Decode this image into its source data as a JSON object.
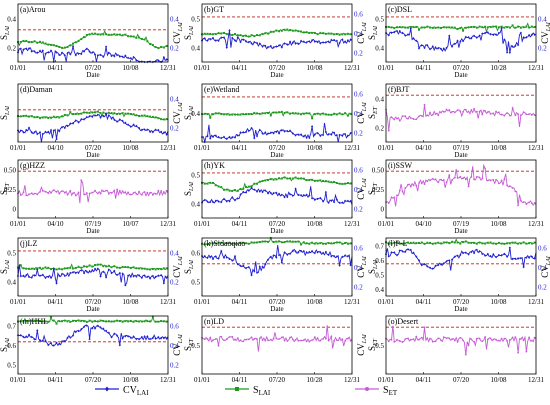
{
  "colors": {
    "cv": "#2020d0",
    "s_lai": "#1e9a1e",
    "s_et": "#c65cd6",
    "threshold": "#c0201a",
    "frame": "#000000"
  },
  "legend": [
    {
      "key": "cv",
      "label": "CV",
      "sub": "LAI",
      "marker": "diamond"
    },
    {
      "key": "s_lai",
      "label": "S",
      "sub": "LAI",
      "marker": "square"
    },
    {
      "key": "s_et",
      "label": "S",
      "sub": "ET",
      "marker": "circle"
    }
  ],
  "chart_data": [
    {
      "id": "a",
      "title": "(a)Arou",
      "type": "line",
      "variables": [
        "s_lai",
        "cv"
      ],
      "ylabel_left": "S",
      "ylabel_left_sub": "LAI",
      "ylabel_right": "CV",
      "ylabel_right_sub": "LAI",
      "left_ticks": [
        "0.4",
        "0.2"
      ],
      "right_ticks": [
        "0.4",
        "0.2"
      ],
      "threshold": 0.5,
      "x_ticks": [
        "01/01",
        "04/11",
        "07/20",
        "10/08",
        "12/31"
      ],
      "xlabel": "Date",
      "s_lai_levels": [
        0.41,
        0.41,
        0.4,
        0.38,
        0.36,
        0.4,
        0.46,
        0.47,
        0.46,
        0.46,
        0.45,
        0.42,
        0.36,
        0.37
      ],
      "cv_levels": [
        0.34,
        0.35,
        0.32,
        0.33,
        0.31,
        0.32,
        0.34,
        0.3,
        0.31,
        0.3,
        0.28,
        0.24,
        0.26,
        0.28
      ]
    },
    {
      "id": "b",
      "title": "(b)GT",
      "type": "line",
      "variables": [
        "s_lai",
        "cv"
      ],
      "ylabel_left": "S",
      "ylabel_left_sub": "LAI",
      "ylabel_right": "CV",
      "ylabel_right_sub": "LAI",
      "left_ticks": [
        "0.5",
        "0.4"
      ],
      "right_ticks": [
        "0.6",
        "0.4",
        "0.2"
      ],
      "threshold": 0.6,
      "x_ticks": [
        "01/01",
        "04/11",
        "07/20",
        "10/08",
        "12/31"
      ],
      "xlabel": "Date",
      "s_lai_levels": [
        0.47,
        0.47,
        0.47,
        0.46,
        0.45,
        0.46,
        0.48,
        0.5,
        0.49,
        0.48,
        0.47,
        0.47,
        0.47,
        0.47
      ],
      "cv_levels": [
        0.42,
        0.43,
        0.43,
        0.42,
        0.41,
        0.38,
        0.36,
        0.38,
        0.4,
        0.41,
        0.41,
        0.41,
        0.41,
        0.41
      ]
    },
    {
      "id": "c",
      "title": "(c)DSL",
      "type": "line",
      "variables": [
        "s_lai",
        "cv"
      ],
      "ylabel_left": "S",
      "ylabel_left_sub": "LAI",
      "ylabel_right": "CV",
      "ylabel_right_sub": "LAI",
      "left_ticks": [
        "0.5",
        "0.4"
      ],
      "right_ticks": [
        "0.4",
        "0.2"
      ],
      "threshold": 0.6,
      "x_ticks": [
        "01/01",
        "04/11",
        "07/20",
        "10/28",
        "12/31"
      ],
      "xlabel": "Date",
      "s_lai_levels": [
        0.52,
        0.52,
        0.52,
        0.52,
        0.52,
        0.52,
        0.51,
        0.52,
        0.52,
        0.52,
        0.52,
        0.52,
        0.52,
        0.52
      ],
      "cv_levels": [
        0.47,
        0.48,
        0.45,
        0.38,
        0.36,
        0.34,
        0.4,
        0.44,
        0.45,
        0.48,
        0.46,
        0.36,
        0.44,
        0.47
      ]
    },
    {
      "id": "d",
      "title": "(d)Daman",
      "type": "line",
      "variables": [
        "s_lai",
        "cv"
      ],
      "ylabel_left": "S",
      "ylabel_left_sub": "LAI",
      "ylabel_right": "CV",
      "ylabel_right_sub": "LAI",
      "left_ticks": [],
      "right_ticks": [
        "0.4",
        "0.2"
      ],
      "threshold": 0.5,
      "x_ticks": [
        "01/01",
        "04/10",
        "07/20",
        "10/08",
        "12/31"
      ],
      "xlabel": "Date",
      "s_lai_levels": [
        0.45,
        0.45,
        0.44,
        0.44,
        0.45,
        0.47,
        0.48,
        0.48,
        0.47,
        0.47,
        0.46,
        0.45,
        0.44,
        0.42
      ],
      "cv_levels": [
        0.33,
        0.33,
        0.32,
        0.33,
        0.36,
        0.41,
        0.44,
        0.45,
        0.44,
        0.41,
        0.37,
        0.34,
        0.33,
        0.32
      ]
    },
    {
      "id": "e",
      "title": "(e)Wetland",
      "type": "line",
      "variables": [
        "s_lai",
        "cv"
      ],
      "ylabel_left": "S",
      "ylabel_left_sub": "LAI",
      "ylabel_right": "CV",
      "ylabel_right_sub": "LAI",
      "left_ticks": [
        "0.4"
      ],
      "right_ticks": [
        "0.6",
        "0.4",
        "0.2"
      ],
      "threshold": 0.6,
      "x_ticks": [
        "01/01",
        "04/11",
        "07/20",
        "10/08",
        "12/31"
      ],
      "xlabel": "Date",
      "s_lai_levels": [
        0.47,
        0.47,
        0.47,
        0.46,
        0.47,
        0.47,
        0.48,
        0.48,
        0.47,
        0.47,
        0.47,
        0.46,
        0.47,
        0.47
      ],
      "cv_levels": [
        0.3,
        0.29,
        0.28,
        0.3,
        0.35,
        0.33,
        0.31,
        0.34,
        0.32,
        0.29,
        0.31,
        0.32,
        0.3,
        0.31
      ]
    },
    {
      "id": "f",
      "title": "(f)BJT",
      "type": "line",
      "variables": [
        "s_et"
      ],
      "ylabel_left": "S",
      "ylabel_left_sub": "ET",
      "ylabel_right": "",
      "ylabel_right_sub": "",
      "left_ticks": [
        "0.4",
        "0.2"
      ],
      "right_ticks": [],
      "threshold": 0.5,
      "x_ticks": [
        "01/01",
        "04/10",
        "07/19",
        "10/08",
        "12/31"
      ],
      "xlabel": "Date",
      "s_et_levels": [
        0.24,
        0.25,
        0.26,
        0.27,
        0.3,
        0.32,
        0.33,
        0.33,
        0.32,
        0.31,
        0.3,
        0.3,
        0.3,
        0.3
      ]
    },
    {
      "id": "g",
      "title": "(g)HZZ",
      "type": "line",
      "variables": [
        "s_et"
      ],
      "ylabel_left": "S",
      "ylabel_left_sub": "ET",
      "ylabel_right": "",
      "ylabel_right_sub": "",
      "left_ticks": [
        "0.50",
        "0.25",
        "0"
      ],
      "right_ticks": [],
      "threshold": 0.5,
      "x_ticks": [
        "01/01",
        "04/10",
        "07/19",
        "10/07",
        "12/31"
      ],
      "xlabel": "Date",
      "s_et_levels": [
        0.27,
        0.26,
        0.27,
        0.28,
        0.27,
        0.26,
        0.27,
        0.28,
        0.28,
        0.27,
        0.27,
        0.26,
        0.27,
        0.27
      ]
    },
    {
      "id": "h",
      "title": "(h)YK",
      "type": "line",
      "variables": [
        "s_lai",
        "cv"
      ],
      "ylabel_left": "S",
      "ylabel_left_sub": "LAI",
      "ylabel_right": "CV",
      "ylabel_right_sub": "LAI",
      "left_ticks": [
        "0.5",
        "0.4"
      ],
      "right_ticks": [
        "0.6",
        "0.4",
        "0.2"
      ],
      "threshold": 0.6,
      "x_ticks": [
        "01/01",
        "04/11",
        "07/20",
        "10/08",
        "12/31"
      ],
      "xlabel": "Date",
      "s_lai_levels": [
        0.52,
        0.52,
        0.47,
        0.46,
        0.49,
        0.53,
        0.55,
        0.56,
        0.56,
        0.55,
        0.54,
        0.53,
        0.52,
        0.52
      ],
      "cv_levels": [
        0.38,
        0.38,
        0.39,
        0.4,
        0.47,
        0.47,
        0.44,
        0.42,
        0.43,
        0.42,
        0.4,
        0.38,
        0.38,
        0.37
      ]
    },
    {
      "id": "i",
      "title": "(i)SSW",
      "type": "line",
      "variables": [
        "s_et"
      ],
      "ylabel_left": "S",
      "ylabel_left_sub": "ET",
      "ylabel_right": "",
      "ylabel_right_sub": "",
      "left_ticks": [
        "0.50",
        "0.25",
        "0"
      ],
      "right_ticks": [],
      "threshold": 0.5,
      "x_ticks": [
        "01/01",
        "04/10",
        "07/19",
        "10/08",
        "12/31"
      ],
      "xlabel": "Date",
      "s_et_levels": [
        0.15,
        0.25,
        0.35,
        0.38,
        0.4,
        0.41,
        0.42,
        0.42,
        0.42,
        0.4,
        0.38,
        0.32,
        0.16,
        0.16
      ]
    },
    {
      "id": "j",
      "title": "(j)LZ",
      "type": "line",
      "variables": [
        "s_lai",
        "cv"
      ],
      "ylabel_left": "S",
      "ylabel_left_sub": "LAI",
      "ylabel_right": "CV",
      "ylabel_right_sub": "LAI",
      "left_ticks": [
        "0.5",
        "0.4"
      ],
      "right_ticks": [
        "0.4",
        "0.2"
      ],
      "threshold": 0.6,
      "x_ticks": [
        "01/01",
        "04/11",
        "07/20",
        "10/08",
        "12/31"
      ],
      "xlabel": "Date",
      "s_lai_levels": [
        0.47,
        0.46,
        0.47,
        0.46,
        0.46,
        0.47,
        0.48,
        0.49,
        0.48,
        0.47,
        0.47,
        0.46,
        0.46,
        0.46
      ],
      "cv_levels": [
        0.4,
        0.41,
        0.4,
        0.4,
        0.41,
        0.43,
        0.44,
        0.45,
        0.44,
        0.42,
        0.41,
        0.4,
        0.4,
        0.4
      ]
    },
    {
      "id": "k",
      "title": "(k)Sidaoqiao",
      "type": "line",
      "variables": [
        "s_lai",
        "cv"
      ],
      "ylabel_left": "S",
      "ylabel_left_sub": "LAI",
      "ylabel_right": "CV",
      "ylabel_right_sub": "LAI",
      "left_ticks": [
        "0.6",
        "0.5"
      ],
      "right_ticks": [
        "0.6",
        "0.4",
        "0.2"
      ],
      "threshold": 0.5,
      "x_ticks": [
        "01/01",
        "04/11",
        "07/20",
        "10/08",
        "12/31"
      ],
      "xlabel": "Date",
      "s_lai_levels": [
        0.65,
        0.66,
        0.66,
        0.66,
        0.66,
        0.67,
        0.67,
        0.67,
        0.67,
        0.66,
        0.66,
        0.66,
        0.66,
        0.66
      ],
      "cv_levels": [
        0.56,
        0.55,
        0.56,
        0.5,
        0.46,
        0.44,
        0.55,
        0.57,
        0.6,
        0.58,
        0.6,
        0.57,
        0.55,
        0.56
      ]
    },
    {
      "id": "l",
      "title": "(l)P-L",
      "type": "line",
      "variables": [
        "s_lai",
        "cv"
      ],
      "ylabel_left": "S",
      "ylabel_left_sub": "LAI",
      "ylabel_right": "CV",
      "ylabel_right_sub": "LAI",
      "left_ticks": [
        "0.7",
        "0.6",
        "0.5",
        "0.4"
      ],
      "right_ticks": [
        "0.6",
        "0.4",
        "0.2"
      ],
      "threshold": 0.5,
      "x_ticks": [
        "01/01",
        "04/11",
        "07/20",
        "10/08",
        "12/31"
      ],
      "xlabel": "Date",
      "s_lai_levels": [
        0.66,
        0.66,
        0.66,
        0.66,
        0.66,
        0.66,
        0.67,
        0.67,
        0.66,
        0.66,
        0.66,
        0.66,
        0.66,
        0.66
      ],
      "cv_levels": [
        0.57,
        0.58,
        0.62,
        0.5,
        0.47,
        0.5,
        0.55,
        0.58,
        0.6,
        0.56,
        0.57,
        0.54,
        0.55,
        0.55
      ]
    },
    {
      "id": "m",
      "title": "(m)HHL",
      "type": "line",
      "variables": [
        "s_lai",
        "cv"
      ],
      "ylabel_left": "S",
      "ylabel_left_sub": "LAI",
      "ylabel_right": "CV",
      "ylabel_right_sub": "LAI",
      "left_ticks": [
        "0.7",
        "0.6",
        "0.5"
      ],
      "right_ticks": [
        "0.6",
        "0.4",
        "0.2"
      ],
      "threshold": 0.5,
      "x_ticks": [
        "01/01",
        "04/11",
        "07/20",
        "10/08",
        "12/31"
      ],
      "xlabel": "Date",
      "s_lai_levels": [
        0.66,
        0.66,
        0.66,
        0.66,
        0.66,
        0.66,
        0.66,
        0.66,
        0.66,
        0.66,
        0.66,
        0.66,
        0.66,
        0.66
      ],
      "cv_levels": [
        0.54,
        0.54,
        0.52,
        0.47,
        0.5,
        0.58,
        0.62,
        0.61,
        0.56,
        0.54,
        0.53,
        0.53,
        0.53,
        0.53
      ]
    },
    {
      "id": "n",
      "title": "(n)LD",
      "type": "line",
      "variables": [
        "s_et"
      ],
      "ylabel_left": "S",
      "ylabel_left_sub": "ET",
      "ylabel_right": "CV",
      "ylabel_right_sub": "LAI",
      "left_ticks": [
        "0.5"
      ],
      "right_ticks": [],
      "threshold": 0.5,
      "x_ticks": [
        "01/01",
        "04/11",
        "07/20",
        "10/28",
        "12/31"
      ],
      "xlabel": "Date",
      "s_et_levels": [
        0.37,
        0.37,
        0.38,
        0.37,
        0.37,
        0.38,
        0.37,
        0.37,
        0.38,
        0.37,
        0.37,
        0.38,
        0.37,
        0.37
      ]
    },
    {
      "id": "o",
      "title": "(o)Desert",
      "type": "line",
      "variables": [
        "s_et"
      ],
      "ylabel_left": "S",
      "ylabel_left_sub": "ET",
      "ylabel_right": "",
      "ylabel_right_sub": "",
      "left_ticks": [
        "0.5"
      ],
      "right_ticks": [],
      "threshold": 0.5,
      "x_ticks": [
        "01/01",
        "04/11",
        "07/20",
        "10/08",
        "12/31"
      ],
      "xlabel": "Date",
      "s_et_levels": [
        0.37,
        0.36,
        0.37,
        0.37,
        0.36,
        0.37,
        0.37,
        0.36,
        0.37,
        0.37,
        0.36,
        0.37,
        0.37,
        0.37
      ]
    }
  ]
}
